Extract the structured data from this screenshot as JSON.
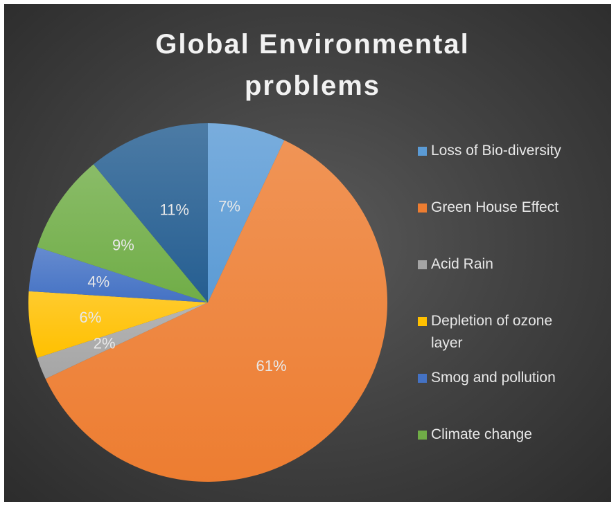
{
  "chart_data": {
    "type": "pie",
    "title": "Global Environmental problems",
    "legend_position": "right",
    "categories": [
      "Loss of Bio-diversity",
      "Green House Effect",
      "Acid Rain",
      "Depletion of ozone layer",
      "Smog and pollution",
      "Climate change",
      ""
    ],
    "values": [
      7,
      61,
      2,
      6,
      4,
      9,
      11
    ],
    "data_labels": [
      "7%",
      "61%",
      "2%",
      "6%",
      "4%",
      "9%",
      "11%"
    ],
    "colors": [
      "#5b9bd5",
      "#ed7d31",
      "#a5a5a5",
      "#ffc000",
      "#4472c4",
      "#70ad47",
      "#255e91"
    ],
    "legend": [
      {
        "label": "Loss of Bio-diversity",
        "color": "#5b9bd5"
      },
      {
        "label": "Green House Effect",
        "color": "#ed7d31"
      },
      {
        "label": "Acid Rain",
        "color": "#a5a5a5"
      },
      {
        "label": "Depletion of ozone layer",
        "color": "#ffc000"
      },
      {
        "label": "Smog and pollution",
        "color": "#4472c4"
      },
      {
        "label": "Climate change",
        "color": "#70ad47"
      }
    ]
  }
}
